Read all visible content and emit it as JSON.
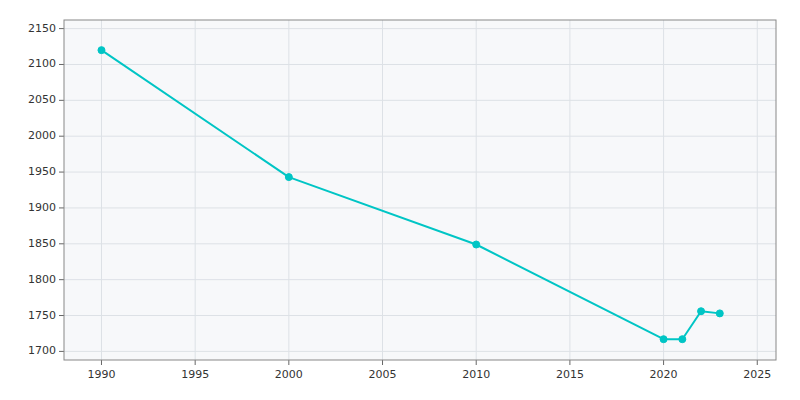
{
  "chart_data": {
    "type": "line",
    "x": [
      1990,
      2000,
      2010,
      2020,
      2021,
      2022,
      2023
    ],
    "values": [
      2120,
      1943,
      1849,
      1717,
      1717,
      1756,
      1753
    ],
    "color": "#00C5C5",
    "marker": "circle",
    "xlim": [
      1988,
      2026
    ],
    "ylim": [
      1688,
      2162
    ],
    "xticks": [
      1990,
      1995,
      2000,
      2005,
      2010,
      2015,
      2020,
      2025
    ],
    "yticks": [
      1700,
      1750,
      1800,
      1850,
      1900,
      1950,
      2000,
      2050,
      2100,
      2150
    ],
    "grid": true
  }
}
